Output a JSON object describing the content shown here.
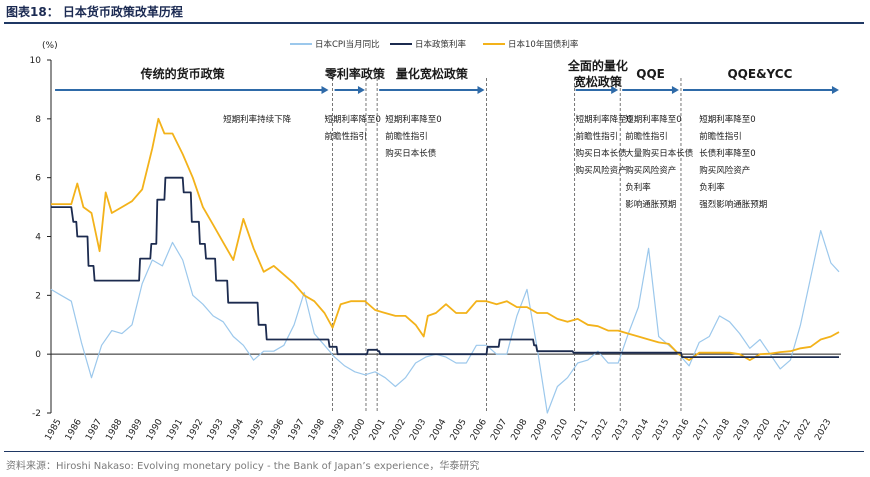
{
  "figure": {
    "title": "图表18：  日本货币政策改革历程",
    "source": "资料来源：Hiroshi Nakaso: Evolving monetary policy - the Bank of Japan’s experience，华泰研究"
  },
  "colors": {
    "cpi": "#9cc8ec",
    "policy": "#1c2b4f",
    "jgb": "#f3b21a",
    "arrow": "#2e6aa8",
    "axis": "#222222",
    "dashed": "#555555"
  },
  "chart_data": {
    "type": "line",
    "y_unit": "(%)",
    "ylim": [
      -2,
      10
    ],
    "yticks": [
      -2,
      0,
      2,
      4,
      6,
      8,
      10
    ],
    "xlim": [
      1985,
      2024
    ],
    "xticks": [
      "1985",
      "1986",
      "1987",
      "1988",
      "1989",
      "1990",
      "1991",
      "1992",
      "1993",
      "1994",
      "1995",
      "1996",
      "1997",
      "1998",
      "1999",
      "2000",
      "2001",
      "2002",
      "2003",
      "2004",
      "2005",
      "2006",
      "2007",
      "2008",
      "2009",
      "2010",
      "2011",
      "2012",
      "2013",
      "2014",
      "2015",
      "2016",
      "2017",
      "2018",
      "2019",
      "2020",
      "2021",
      "2022",
      "2023"
    ],
    "legend": [
      "日本CPI当月同比",
      "日本政策利率",
      "日本10年国债利率"
    ],
    "series": [
      {
        "name": "日本CPI当月同比",
        "x": [
          1985,
          1985.5,
          1986,
          1986.5,
          1987,
          1987.5,
          1988,
          1988.5,
          1989,
          1989.5,
          1990,
          1990.5,
          1991,
          1991.5,
          1992,
          1992.5,
          1993,
          1993.5,
          1994,
          1994.5,
          1995,
          1995.5,
          1996,
          1996.5,
          1997,
          1997.5,
          1998,
          1998.5,
          1999,
          1999.5,
          2000,
          2000.5,
          2001,
          2001.5,
          2002,
          2002.5,
          2003,
          2003.5,
          2004,
          2004.5,
          2005,
          2005.5,
          2006,
          2006.5,
          2007,
          2007.5,
          2008,
          2008.5,
          2009,
          2009.5,
          2010,
          2010.5,
          2011,
          2011.5,
          2012,
          2012.5,
          2013,
          2013.5,
          2014,
          2014.5,
          2015,
          2015.5,
          2016,
          2016.5,
          2017,
          2017.5,
          2018,
          2018.5,
          2019,
          2019.5,
          2020,
          2020.5,
          2021,
          2021.5,
          2022,
          2022.5,
          2023,
          2023.5,
          2023.9
        ],
        "values": [
          2.2,
          2.0,
          1.8,
          0.4,
          -0.8,
          0.3,
          0.8,
          0.7,
          1.0,
          2.4,
          3.2,
          3.0,
          3.8,
          3.2,
          2.0,
          1.7,
          1.3,
          1.1,
          0.6,
          0.3,
          -0.2,
          0.1,
          0.1,
          0.3,
          1.0,
          2.1,
          0.7,
          0.3,
          -0.1,
          -0.4,
          -0.6,
          -0.7,
          -0.6,
          -0.8,
          -1.1,
          -0.8,
          -0.3,
          -0.1,
          0.0,
          -0.1,
          -0.3,
          -0.3,
          0.3,
          0.3,
          0.0,
          0.0,
          1.3,
          2.2,
          0.2,
          -2.0,
          -1.1,
          -0.8,
          -0.3,
          -0.2,
          0.1,
          -0.3,
          -0.3,
          0.7,
          1.6,
          3.6,
          0.6,
          0.3,
          0.0,
          -0.4,
          0.4,
          0.6,
          1.3,
          1.1,
          0.7,
          0.2,
          0.5,
          0.0,
          -0.5,
          -0.2,
          1.0,
          2.6,
          4.2,
          3.1,
          2.8
        ]
      },
      {
        "name": "日本政策利率",
        "x": [
          1985,
          1986,
          1986.1,
          1986.25,
          1986.3,
          1986.8,
          1986.85,
          1987.1,
          1987.15,
          1989.35,
          1989.4,
          1989.9,
          1989.95,
          1990.2,
          1990.25,
          1990.6,
          1990.65,
          1991.5,
          1991.55,
          1991.9,
          1991.95,
          1992.3,
          1992.35,
          1992.6,
          1992.65,
          1993.1,
          1993.15,
          1993.7,
          1993.75,
          1995.2,
          1995.25,
          1995.6,
          1995.65,
          1998.7,
          1998.75,
          1999.1,
          1999.15,
          2000.6,
          2000.65,
          2001.1,
          2001.15,
          2001.2,
          2001.25,
          2006.5,
          2006.55,
          2007.1,
          2007.15,
          2008.8,
          2008.85,
          2008.95,
          2009,
          2010.75,
          2010.8,
          2013,
          2016.1,
          2016.15,
          2023.9
        ],
        "values": [
          5.0,
          5.0,
          4.5,
          4.5,
          4.0,
          4.0,
          3.0,
          3.0,
          2.5,
          2.5,
          3.25,
          3.25,
          3.75,
          3.75,
          5.25,
          5.25,
          6.0,
          6.0,
          5.5,
          5.5,
          4.5,
          4.5,
          3.75,
          3.75,
          3.25,
          3.25,
          2.5,
          2.5,
          1.75,
          1.75,
          1.0,
          1.0,
          0.5,
          0.5,
          0.25,
          0.25,
          0.0,
          0.0,
          0.15,
          0.15,
          0.1,
          0.1,
          0.0,
          0.0,
          0.25,
          0.25,
          0.5,
          0.5,
          0.3,
          0.3,
          0.1,
          0.1,
          0.05,
          0.05,
          0.05,
          -0.1,
          -0.1
        ]
      },
      {
        "name": "日本10年国债利率",
        "x": [
          1985,
          1985.5,
          1986,
          1986.3,
          1986.6,
          1987,
          1987.4,
          1987.7,
          1988,
          1988.5,
          1989,
          1989.5,
          1990,
          1990.3,
          1990.6,
          1991,
          1991.5,
          1992,
          1992.5,
          1993,
          1993.5,
          1994,
          1994.5,
          1995,
          1995.5,
          1996,
          1996.5,
          1997,
          1997.5,
          1998,
          1998.5,
          1998.9,
          1999.3,
          1999.8,
          2000.5,
          2001,
          2001.5,
          2002,
          2002.5,
          2003,
          2003.4,
          2003.6,
          2004,
          2004.5,
          2005,
          2005.5,
          2006,
          2006.5,
          2007,
          2007.5,
          2008,
          2008.5,
          2009,
          2009.5,
          2010,
          2010.5,
          2011,
          2011.5,
          2012,
          2012.5,
          2013,
          2013.5,
          2014,
          2014.5,
          2015,
          2015.5,
          2016,
          2016.5,
          2017,
          2017.5,
          2018,
          2018.5,
          2019,
          2019.5,
          2020,
          2020.5,
          2021,
          2021.5,
          2022,
          2022.5,
          2023,
          2023.5,
          2023.9
        ],
        "values": [
          5.1,
          5.1,
          5.1,
          5.8,
          5.0,
          4.8,
          3.5,
          5.5,
          4.8,
          5.0,
          5.2,
          5.6,
          7.0,
          8.0,
          7.5,
          7.5,
          6.8,
          6.0,
          5.0,
          4.4,
          3.8,
          3.2,
          4.6,
          3.6,
          2.8,
          3.0,
          2.7,
          2.4,
          2.0,
          1.8,
          1.4,
          0.9,
          1.7,
          1.8,
          1.8,
          1.5,
          1.4,
          1.3,
          1.3,
          1.0,
          0.6,
          1.3,
          1.4,
          1.7,
          1.4,
          1.4,
          1.8,
          1.8,
          1.7,
          1.8,
          1.6,
          1.6,
          1.4,
          1.4,
          1.2,
          1.1,
          1.2,
          1.0,
          0.95,
          0.8,
          0.8,
          0.7,
          0.6,
          0.5,
          0.4,
          0.35,
          0.0,
          -0.2,
          0.05,
          0.05,
          0.05,
          0.05,
          0.0,
          -0.2,
          0.0,
          0.02,
          0.07,
          0.1,
          0.2,
          0.25,
          0.5,
          0.6,
          0.75
        ]
      }
    ],
    "dividers": [
      1998.9,
      2000.55,
      2001.1,
      2006.5,
      2010.85,
      2013.1,
      2016.1
    ],
    "periods": [
      {
        "label": "传统的货币政策",
        "x_start": 1985.2,
        "x_end": 1998.7,
        "label_x": 1991.5
      },
      {
        "label": "零利率政策",
        "x_start": 1999.0,
        "x_end": 2000.5,
        "label_x": 2000.0
      },
      {
        "label": "量化宽松政策",
        "x_start": 2001.2,
        "x_end": 2006.4,
        "label_x": 2003.8
      },
      {
        "label": "全面的量化",
        "label2": "宽松政策",
        "x_start": 2010.9,
        "x_end": 2013.0,
        "label_x": 2012.0
      },
      {
        "label": "QQE",
        "x_start": 2013.2,
        "x_end": 2016.0,
        "label_x": 2014.6
      },
      {
        "label": "QQE&YCC",
        "x_start": 2016.2,
        "x_end": 2023.9,
        "label_x": 2020.0
      }
    ],
    "notes": [
      {
        "lines": [
          "短期利率持续下降"
        ],
        "x": 1993.5,
        "y": 7.9
      },
      {
        "lines": [
          "短期利率降至0",
          "前瞻性指引"
        ],
        "x": 1998.5,
        "y": 7.9
      },
      {
        "lines": [
          "短期利率降至0",
          "前瞻性指引",
          "购买日本长债"
        ],
        "x": 2001.5,
        "y": 7.9
      },
      {
        "lines": [
          "短期利率降至0",
          "前瞻性指引",
          "购买日本长债",
          "购买风险资产"
        ],
        "x": 2010.9,
        "y": 7.9
      },
      {
        "lines": [
          "短期利率降至0",
          "前瞻性指引",
          "大量购买日本长债",
          "购买风险资产",
          "负利率",
          "影响通胀预期"
        ],
        "x": 2013.35,
        "y": 7.9
      },
      {
        "lines": [
          "短期利率降至0",
          "前瞻性指引",
          "长债利率降至0",
          "购买风险资产",
          "负利率",
          "强烈影响通胀预期"
        ],
        "x": 2017.0,
        "y": 7.9
      }
    ]
  }
}
